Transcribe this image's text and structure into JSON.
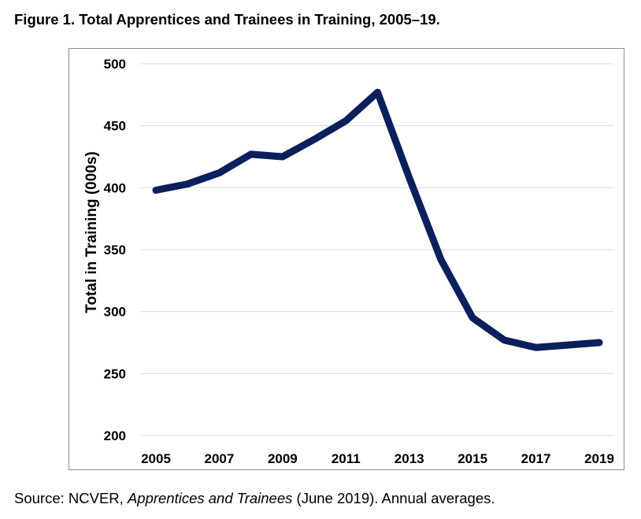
{
  "figure_title": "Figure 1. Total Apprentices and Trainees in Training, 2005–19.",
  "source": {
    "prefix": "Source: NCVER, ",
    "italic": "Apprentices and Trainees",
    "suffix": " (June 2019). Annual averages."
  },
  "colors": {
    "line": "#0b1f5c",
    "grid": "#d9d9d9",
    "frame": "#8c8c8c"
  },
  "chart_data": {
    "type": "line",
    "title": "",
    "xlabel": "",
    "ylabel": "Total in Training (000s)",
    "x": [
      2005,
      2006,
      2007,
      2008,
      2009,
      2010,
      2011,
      2012,
      2013,
      2014,
      2015,
      2016,
      2017,
      2018,
      2019
    ],
    "x_tick_labels": [
      "2005",
      "2007",
      "2009",
      "2011",
      "2013",
      "2015",
      "2017",
      "2019"
    ],
    "y_ticks": [
      200,
      250,
      300,
      350,
      400,
      450,
      500
    ],
    "ylim": [
      200,
      500
    ],
    "grid": true,
    "legend": "none",
    "series": [
      {
        "values": [
          398,
          403,
          412,
          427,
          425,
          439,
          454,
          477,
          408,
          342,
          295,
          277,
          271,
          273,
          275
        ]
      }
    ]
  }
}
